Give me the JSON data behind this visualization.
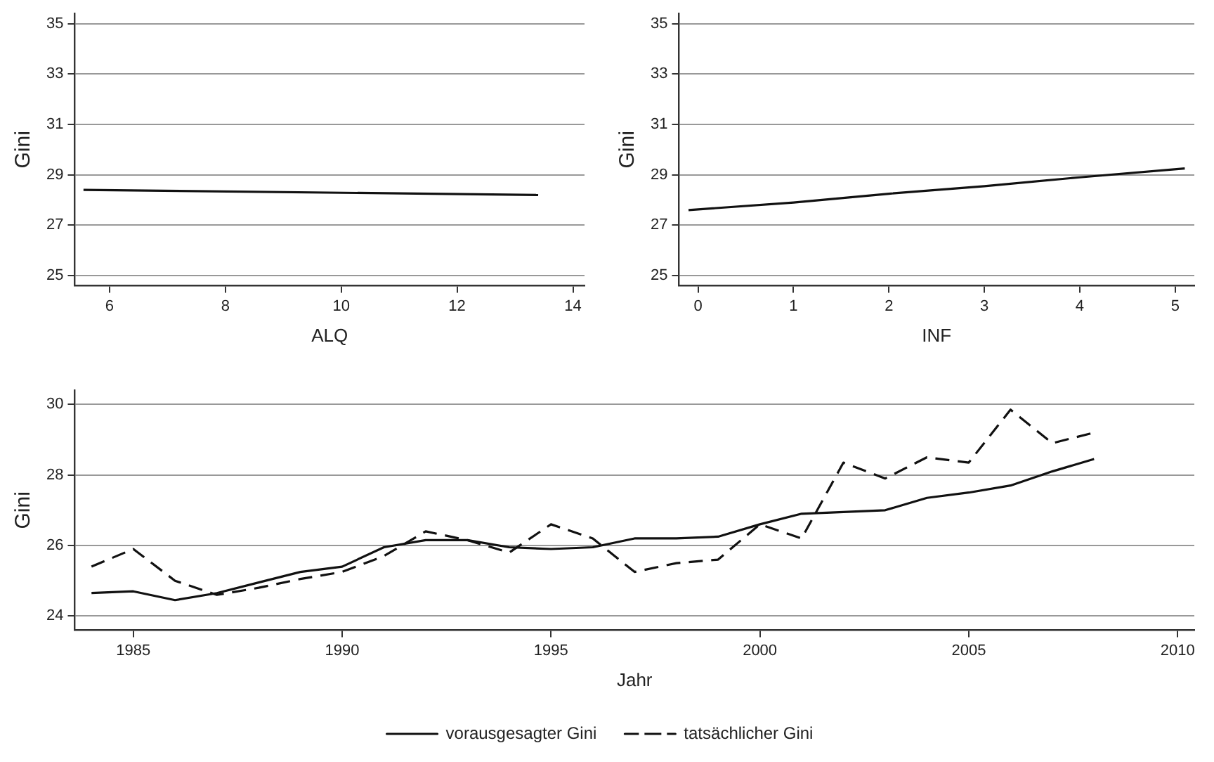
{
  "chart_data": [
    {
      "type": "line",
      "xlabel": "ALQ",
      "ylabel": "Gini",
      "xlim": [
        5.4,
        14.2
      ],
      "xticks": [
        6,
        8,
        10,
        12,
        14
      ],
      "ylim": [
        24.6,
        35.4
      ],
      "yticks": [
        25,
        27,
        29,
        31,
        33,
        35
      ],
      "grid": "y",
      "legend": false,
      "series": [
        {
          "color": "#111111",
          "line_style": "solid",
          "x": [
            5.55,
            13.4
          ],
          "values": [
            28.4,
            28.2
          ]
        }
      ]
    },
    {
      "type": "line",
      "xlabel": "INF",
      "ylabel": "Gini",
      "xlim": [
        -0.2,
        5.2
      ],
      "xticks": [
        0,
        1,
        2,
        3,
        4,
        5
      ],
      "ylim": [
        24.6,
        35.4
      ],
      "yticks": [
        25,
        27,
        29,
        31,
        33,
        35
      ],
      "grid": "y",
      "legend": false,
      "series": [
        {
          "color": "#111111",
          "line_style": "solid",
          "x": [
            -0.1,
            1,
            2,
            3,
            4,
            5.1
          ],
          "values": [
            27.6,
            27.9,
            28.25,
            28.55,
            28.9,
            29.25
          ]
        }
      ]
    },
    {
      "type": "line",
      "xlabel": "Jahr",
      "ylabel": "Gini",
      "xlim": [
        1983.6,
        2010.4
      ],
      "xticks": [
        1985,
        1990,
        1995,
        2000,
        2005,
        2010
      ],
      "ylim": [
        23.6,
        30.4
      ],
      "yticks": [
        24,
        26,
        28,
        30
      ],
      "grid": "y",
      "legend": "bottom",
      "x": [
        1984,
        1985,
        1986,
        1987,
        1988,
        1989,
        1990,
        1991,
        1992,
        1993,
        1994,
        1995,
        1996,
        1997,
        1998,
        1999,
        2000,
        2001,
        2002,
        2003,
        2004,
        2005,
        2006,
        2007,
        2008
      ],
      "series": [
        {
          "name": "vorausgesagter Gini",
          "color": "#111111",
          "line_style": "solid",
          "values": [
            24.65,
            24.7,
            24.45,
            24.65,
            24.95,
            25.25,
            25.4,
            25.95,
            26.15,
            26.15,
            25.95,
            25.9,
            25.95,
            26.2,
            26.2,
            26.25,
            26.6,
            26.9,
            26.95,
            27.0,
            27.35,
            27.5,
            27.7,
            28.1,
            28.45
          ]
        },
        {
          "name": "tatsächlicher Gini",
          "color": "#111111",
          "line_style": "dashed",
          "values": [
            25.4,
            25.9,
            25.0,
            24.6,
            24.8,
            25.05,
            25.25,
            25.7,
            26.4,
            26.15,
            25.8,
            26.6,
            26.2,
            25.25,
            25.5,
            25.6,
            26.6,
            26.2,
            28.35,
            27.9,
            28.5,
            28.35,
            29.85,
            28.9,
            29.2
          ]
        }
      ]
    }
  ]
}
